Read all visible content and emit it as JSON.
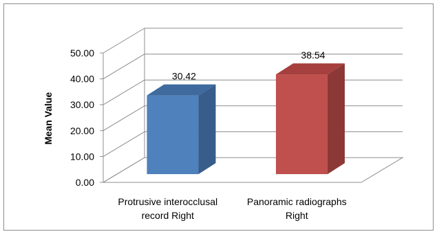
{
  "chart_data": {
    "type": "bar",
    "style": "3d-column",
    "categories": [
      [
        "Protrusive interocclusal",
        "record Right"
      ],
      [
        "Panoramic radiographs",
        "Right"
      ]
    ],
    "values": [
      30.42,
      38.54
    ],
    "value_labels": [
      "30.42",
      "38.54"
    ],
    "ylabel": "Mean Value",
    "ylim": [
      0,
      50
    ],
    "yticks": [
      "0.00",
      "10.00",
      "20.00",
      "30.00",
      "40.00",
      "50.00"
    ],
    "grid": true,
    "legend": "none",
    "colors": {
      "bars": [
        "#4F81BD",
        "#C0504D"
      ],
      "bar_sides": [
        "#385D8A",
        "#8C3836"
      ],
      "bar_tops": [
        "#3E6A9E",
        "#A6403E"
      ],
      "grid": "#8C8C8C",
      "frame": "#8C8C8C"
    }
  }
}
